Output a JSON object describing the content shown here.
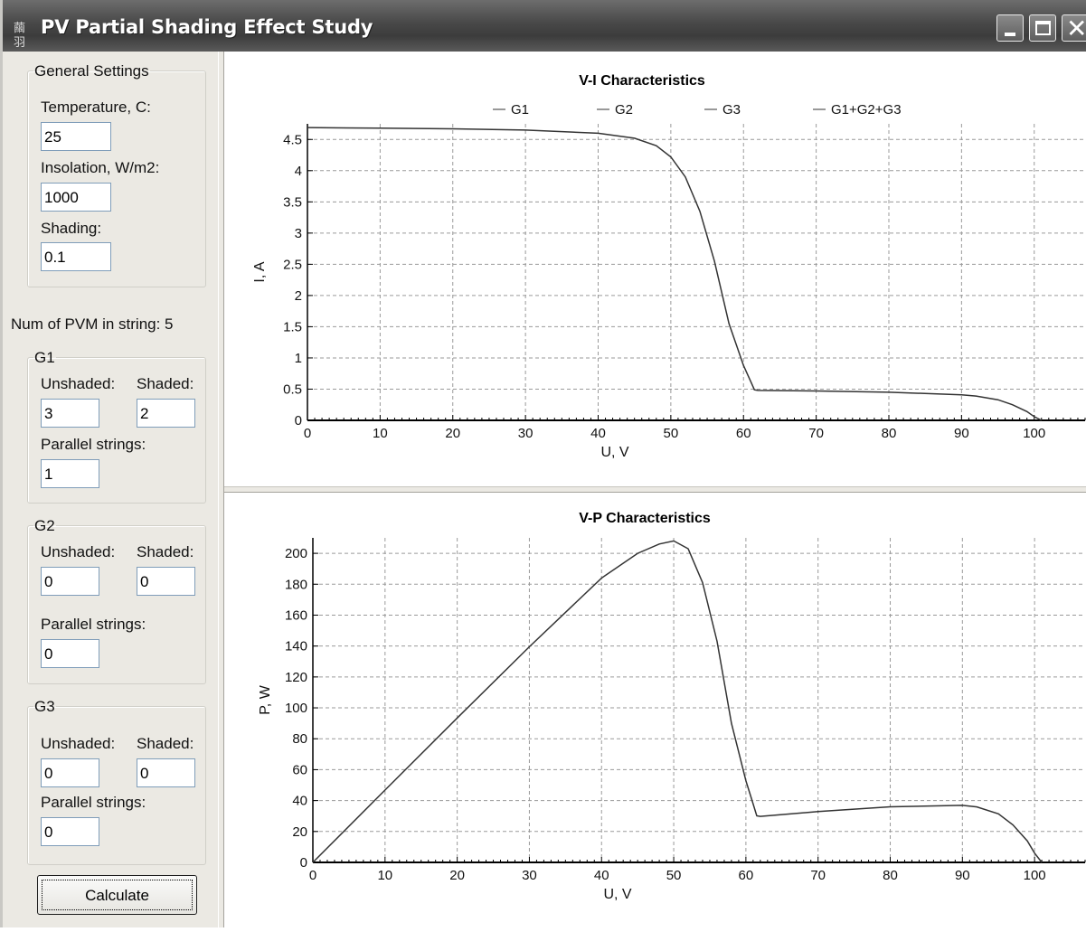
{
  "window": {
    "title": "PV Partial Shading Effect Study",
    "icon": "app-icon",
    "icon_glyph": "繭羽",
    "controls": {
      "minimize": "minimize-icon",
      "maximize": "maximize-icon",
      "close": "close-icon",
      "close_glyph": "✕"
    }
  },
  "general": {
    "legend": "General Settings",
    "temperature_label": "Temperature, C:",
    "temperature": "25",
    "insolation_label": "Insolation, W/m2:",
    "insolation": "1000",
    "shading_label": "Shading:",
    "shading": "0.1"
  },
  "num_pvm_label": "Num of PVM in string: 5",
  "groups": [
    {
      "legend": "G1",
      "unshaded_label": "Unshaded:",
      "shaded_label": "Shaded:",
      "unshaded": "3",
      "shaded": "2",
      "parallel_label": "Parallel strings:",
      "parallel": "1"
    },
    {
      "legend": "G2",
      "unshaded_label": "Unshaded:",
      "shaded_label": "Shaded:",
      "unshaded": "0",
      "shaded": "0",
      "parallel_label": "Parallel strings:",
      "parallel": "0"
    },
    {
      "legend": "G3",
      "unshaded_label": "Unshaded:",
      "shaded_label": "Shaded:",
      "unshaded": "0",
      "shaded": "0",
      "parallel_label": "Parallel strings:",
      "parallel": "0"
    }
  ],
  "calculate_label": "Calculate",
  "chart_data": [
    {
      "type": "line",
      "title": "V-I Characteristics",
      "xlabel": "U, V",
      "ylabel": "I, A",
      "xlim": [
        0,
        107
      ],
      "ylim": [
        0,
        4.75
      ],
      "xticks": [
        "0",
        "10",
        "20",
        "30",
        "40",
        "50",
        "60",
        "70",
        "80",
        "90",
        "100"
      ],
      "yticks": [
        "0",
        "0.5",
        "1",
        "1.5",
        "2",
        "2.5",
        "3",
        "3.5",
        "4",
        "4.5"
      ],
      "grid": true,
      "legend_position": "top",
      "series": [
        {
          "name": "G1",
          "x": [],
          "y": []
        },
        {
          "name": "G2",
          "x": [],
          "y": []
        },
        {
          "name": "G3",
          "x": [],
          "y": []
        },
        {
          "name": "G1+G2+G3",
          "x": [
            0,
            10,
            20,
            30,
            40,
            45,
            48,
            50,
            52,
            54,
            56,
            58,
            60,
            61,
            61.5,
            62,
            70,
            80,
            90,
            92,
            95,
            97,
            99,
            100,
            101
          ],
          "y": [
            4.69,
            4.68,
            4.67,
            4.65,
            4.6,
            4.52,
            4.4,
            4.22,
            3.9,
            3.35,
            2.55,
            1.55,
            0.88,
            0.62,
            0.49,
            0.48,
            0.47,
            0.45,
            0.41,
            0.39,
            0.33,
            0.25,
            0.14,
            0.06,
            0.0
          ]
        }
      ]
    },
    {
      "type": "line",
      "title": "V-P Characteristics",
      "xlabel": "U, V",
      "ylabel": "P, W",
      "xlim": [
        0,
        107
      ],
      "ylim": [
        0,
        210
      ],
      "xticks": [
        "0",
        "10",
        "20",
        "30",
        "40",
        "50",
        "60",
        "70",
        "80",
        "90",
        "100"
      ],
      "yticks": [
        "0",
        "20",
        "40",
        "60",
        "80",
        "100",
        "120",
        "140",
        "160",
        "180",
        "200"
      ],
      "grid": true,
      "series": [
        {
          "name": "G1+G2+G3",
          "x": [
            0,
            10,
            20,
            30,
            40,
            45,
            48,
            50,
            52,
            54,
            56,
            58,
            60,
            61,
            61.5,
            62,
            70,
            80,
            90,
            92,
            95,
            97,
            99,
            100,
            101
          ],
          "y": [
            0,
            46.8,
            93.4,
            139.5,
            184,
            200,
            206,
            208,
            203,
            181,
            143,
            90,
            52.8,
            37.8,
            30.1,
            29.8,
            32.9,
            36,
            36.9,
            35.9,
            31.4,
            24.3,
            13.9,
            6,
            0
          ]
        }
      ]
    }
  ]
}
